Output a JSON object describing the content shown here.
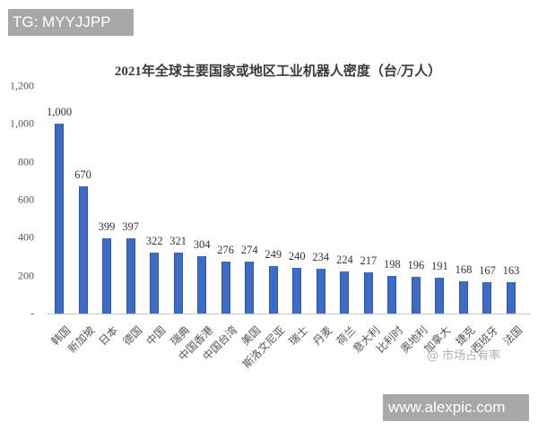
{
  "watermarks": {
    "tg": "TG: MYYJJPP",
    "weibo": "@ 市场占有率",
    "url": "www.alexpic.com"
  },
  "colors": {
    "bar": "#3d6cc6",
    "badge_bg": "#a8a8a8"
  },
  "chart_data": {
    "type": "bar",
    "title": "2021年全球主要国家或地区工业机器人密度（台/万人）",
    "xlabel": "",
    "ylabel": "",
    "ylim": [
      0,
      1200
    ],
    "yticks": [
      "-",
      "200",
      "400",
      "600",
      "800",
      "1,000",
      "1,200"
    ],
    "grid": false,
    "legend": null,
    "categories": [
      "韩国",
      "新加坡",
      "日本",
      "德国",
      "中国",
      "瑞典",
      "中国香港",
      "中国台湾",
      "美国",
      "斯洛文尼亚",
      "瑞士",
      "丹麦",
      "荷兰",
      "意大利",
      "比利时",
      "奥地利",
      "加拿大",
      "捷克",
      "西班牙",
      "法国"
    ],
    "values": [
      1000,
      670,
      399,
      397,
      322,
      321,
      304,
      276,
      274,
      249,
      240,
      234,
      224,
      217,
      198,
      196,
      191,
      168,
      167,
      163
    ],
    "value_labels": [
      "1,000",
      "670",
      "399",
      "397",
      "322",
      "321",
      "304",
      "276",
      "274",
      "249",
      "240",
      "234",
      "224",
      "217",
      "198",
      "196",
      "191",
      "168",
      "167",
      "163"
    ]
  }
}
